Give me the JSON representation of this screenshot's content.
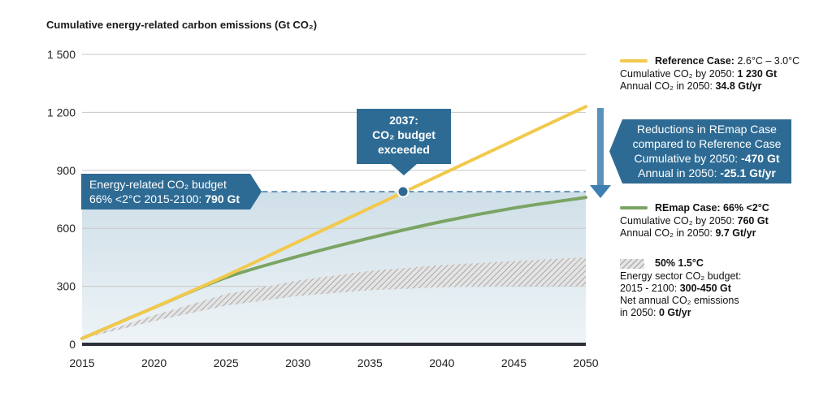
{
  "chart_data": {
    "type": "line",
    "title": "Cumulative energy-related carbon emissions (Gt CO₂)",
    "x_ticks": [
      2015,
      2020,
      2025,
      2030,
      2035,
      2040,
      2045,
      2050
    ],
    "y_ticks": [
      "0",
      "300",
      "600",
      "900",
      "1 200",
      "1 500"
    ],
    "xlim": [
      2015,
      2050
    ],
    "ylim": [
      0,
      1500
    ],
    "grid": "horizontal",
    "series": [
      {
        "name": "Reference Case",
        "color": "#f2c94c",
        "x": [
          2015,
          2020,
          2025,
          2030,
          2035,
          2040,
          2045,
          2050
        ],
        "y": [
          30,
          190,
          355,
          530,
          705,
          880,
          1055,
          1230
        ]
      },
      {
        "name": "REmap Case",
        "color": "#7ba463",
        "x": [
          2015,
          2020,
          2025,
          2030,
          2035,
          2040,
          2045,
          2050
        ],
        "y": [
          30,
          190,
          345,
          455,
          550,
          635,
          705,
          760
        ]
      }
    ],
    "band": {
      "name": "50% 1.5°C",
      "x": [
        2015,
        2020,
        2025,
        2030,
        2035,
        2040,
        2045,
        2050
      ],
      "lower": [
        30,
        120,
        200,
        250,
        280,
        295,
        300,
        300
      ],
      "upper": [
        30,
        150,
        260,
        330,
        380,
        410,
        430,
        450
      ]
    },
    "budget_line": {
      "value": 790,
      "from": 2027.5,
      "to": 2050
    },
    "crossing_point": {
      "x": 2037.3,
      "y": 790
    },
    "annotations": {
      "budget": {
        "line1": "Energy-related CO₂ budget",
        "line2": "66% <2°C 2015-2100:",
        "value": "790 Gt"
      },
      "crossing": {
        "line1": "2037:",
        "line2": "CO₂ budget",
        "line3": "exceeded"
      },
      "reductions": {
        "line1": "Reductions in REmap Case",
        "line2": "compared to Reference Case",
        "line3_label": "Cumulative by 2050:",
        "line3_value": "-470 Gt",
        "line4_label": "Annual in 2050:",
        "line4_value": "-25.1 Gt/yr"
      }
    },
    "legend": {
      "reference": {
        "head": "Reference Case:",
        "range": "2.6°C – 3.0°C",
        "line1_label": "Cumulative CO₂ by 2050:",
        "line1_value": "1 230 Gt",
        "line2_label": "Annual CO₂ in 2050:",
        "line2_value": "34.8 Gt/yr"
      },
      "remap": {
        "head": "REmap Case: 66% <2°C",
        "line1_label": "Cumulative CO₂ by 2050:",
        "line1_value": "760 Gt",
        "line2_label": "Annual CO₂ in 2050:",
        "line2_value": "9.7 Gt/yr"
      },
      "band": {
        "head": "50% 1.5°C",
        "line1": "Energy sector CO₂ budget:",
        "line2_label": "2015 - 2100:",
        "line2_value": "300-450 Gt",
        "line3": "Net annual CO₂ emissions",
        "line4_label": "in 2050:",
        "line4_value": "0 Gt/yr"
      }
    }
  }
}
